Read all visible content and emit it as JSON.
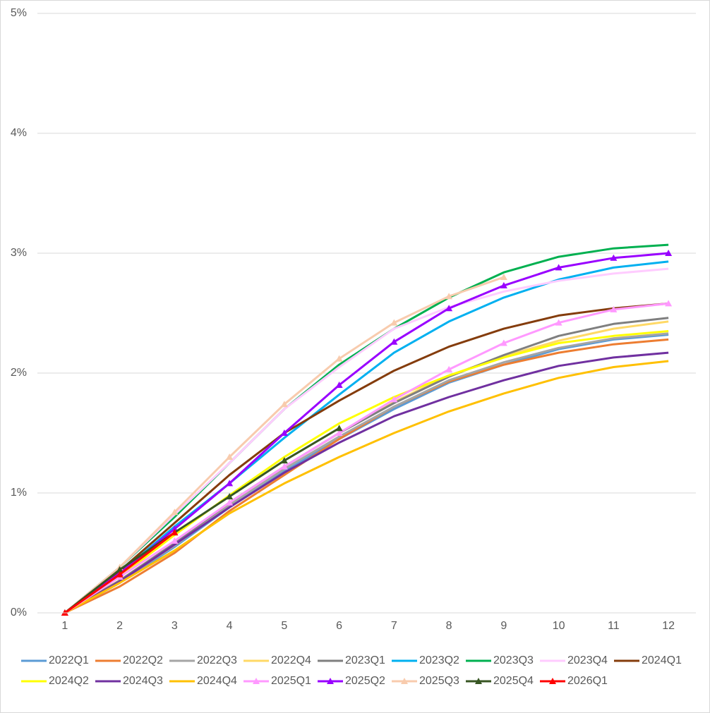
{
  "chart_data": {
    "type": "line",
    "categories": [
      "1",
      "2",
      "3",
      "4",
      "5",
      "6",
      "7",
      "8",
      "9",
      "10",
      "11",
      "12"
    ],
    "ylim": [
      0,
      5
    ],
    "yticks": [
      {
        "value": 0,
        "label": "0%"
      },
      {
        "value": 1,
        "label": "1%"
      },
      {
        "value": 2,
        "label": "2%"
      },
      {
        "value": 3,
        "label": "3%"
      },
      {
        "value": 4,
        "label": "4%"
      },
      {
        "value": 5,
        "label": "5%"
      }
    ],
    "grid": true,
    "legend": "bottom",
    "series": [
      {
        "name": "2022Q1",
        "color": "#5b9bd5",
        "values": [
          0,
          0.25,
          0.55,
          0.88,
          1.18,
          1.45,
          1.7,
          1.92,
          2.07,
          2.2,
          2.28,
          2.32
        ]
      },
      {
        "name": "2022Q2",
        "color": "#ed7d31",
        "values": [
          0,
          0.22,
          0.5,
          0.85,
          1.15,
          1.45,
          1.72,
          1.93,
          2.07,
          2.17,
          2.24,
          2.28
        ]
      },
      {
        "name": "2022Q3",
        "color": "#a5a5a5",
        "values": [
          0,
          0.26,
          0.56,
          0.9,
          1.2,
          1.47,
          1.72,
          1.94,
          2.09,
          2.21,
          2.29,
          2.33
        ]
      },
      {
        "name": "2022Q4",
        "color": "#ffd966",
        "values": [
          0,
          0.27,
          0.58,
          0.92,
          1.22,
          1.5,
          1.76,
          1.98,
          2.14,
          2.27,
          2.37,
          2.43
        ]
      },
      {
        "name": "2023Q1",
        "color": "#7f7f7f",
        "values": [
          0,
          0.27,
          0.58,
          0.92,
          1.22,
          1.5,
          1.75,
          1.97,
          2.15,
          2.31,
          2.41,
          2.46
        ]
      },
      {
        "name": "2023Q2",
        "color": "#00b0f0",
        "values": [
          0,
          0.33,
          0.72,
          1.08,
          1.46,
          1.82,
          2.17,
          2.43,
          2.63,
          2.78,
          2.88,
          2.93
        ]
      },
      {
        "name": "2023Q3",
        "color": "#00b050",
        "values": [
          0,
          0.38,
          0.8,
          1.25,
          1.7,
          2.07,
          2.37,
          2.63,
          2.84,
          2.97,
          3.04,
          3.07
        ]
      },
      {
        "name": "2023Q4",
        "color": "#ffccff",
        "values": [
          0,
          0.38,
          0.82,
          1.25,
          1.7,
          2.05,
          2.37,
          2.55,
          2.68,
          2.77,
          2.83,
          2.87
        ]
      },
      {
        "name": "2024Q1",
        "color": "#843c0c",
        "values": [
          0,
          0.35,
          0.75,
          1.15,
          1.5,
          1.77,
          2.02,
          2.22,
          2.37,
          2.48,
          2.54,
          2.58
        ]
      },
      {
        "name": "2024Q2",
        "color": "#ffff00",
        "values": [
          0,
          0.3,
          0.65,
          0.98,
          1.3,
          1.58,
          1.8,
          1.98,
          2.13,
          2.25,
          2.31,
          2.35
        ]
      },
      {
        "name": "2024Q3",
        "color": "#7030a0",
        "values": [
          0,
          0.26,
          0.57,
          0.88,
          1.17,
          1.42,
          1.64,
          1.8,
          1.94,
          2.06,
          2.13,
          2.17
        ]
      },
      {
        "name": "2024Q4",
        "color": "#ffc000",
        "values": [
          0,
          0.25,
          0.52,
          0.83,
          1.08,
          1.3,
          1.5,
          1.68,
          1.83,
          1.96,
          2.05,
          2.1
        ]
      },
      {
        "name": "2025Q1",
        "color": "#ff99ff",
        "marker": "triangle",
        "values": [
          0,
          0.3,
          0.6,
          0.92,
          1.22,
          1.5,
          1.78,
          2.03,
          2.25,
          2.42,
          2.53,
          2.58
        ]
      },
      {
        "name": "2025Q2",
        "color": "#9900ff",
        "marker": "triangle",
        "values": [
          0,
          0.33,
          0.7,
          1.08,
          1.5,
          1.9,
          2.26,
          2.54,
          2.73,
          2.88,
          2.96,
          3.0
        ]
      },
      {
        "name": "2025Q3",
        "color": "#f8cbad",
        "marker": "triangle",
        "values": [
          0,
          0.38,
          0.84,
          1.3,
          1.74,
          2.12,
          2.42,
          2.64,
          2.8,
          null,
          null,
          null
        ]
      },
      {
        "name": "2025Q4",
        "color": "#375623",
        "marker": "triangle",
        "values": [
          0,
          0.36,
          0.67,
          0.97,
          1.27,
          1.54,
          null,
          null,
          null,
          null,
          null,
          null
        ]
      },
      {
        "name": "2026Q1",
        "color": "#ff0000",
        "marker": "triangle",
        "values": [
          0,
          0.32,
          0.67,
          null,
          null,
          null,
          null,
          null,
          null,
          null,
          null,
          null
        ]
      }
    ]
  }
}
